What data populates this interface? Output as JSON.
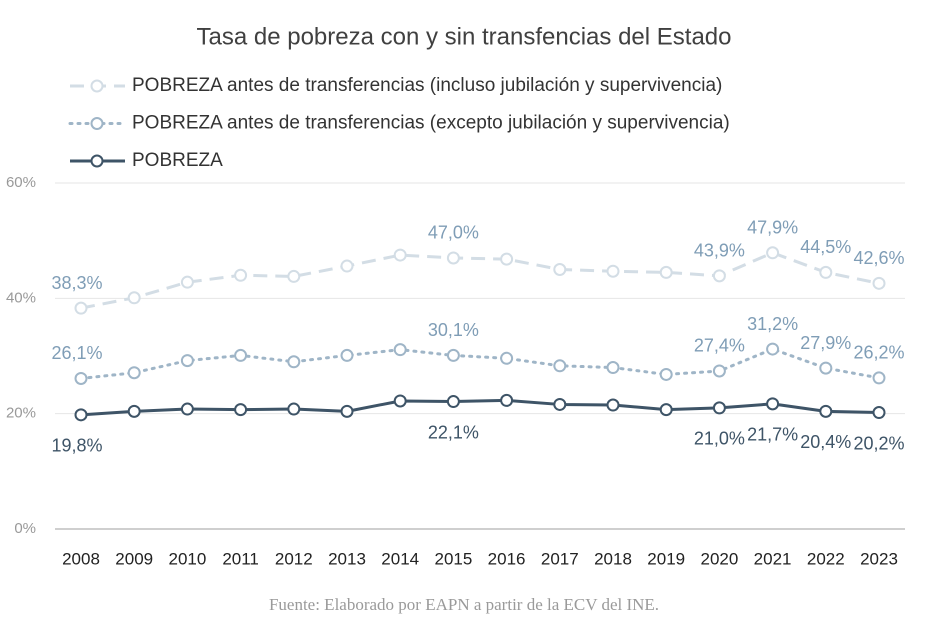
{
  "chart_data": {
    "type": "line",
    "title": "Tasa de pobreza con y sin transfencias del Estado",
    "source": "Fuente: Elaborado por EAPN a partir de la ECV del INE.",
    "categories": [
      "2008",
      "2009",
      "2010",
      "2011",
      "2012",
      "2013",
      "2014",
      "2015",
      "2016",
      "2017",
      "2018",
      "2019",
      "2020",
      "2021",
      "2022",
      "2023"
    ],
    "ylim": [
      0,
      60
    ],
    "yticks": [
      {
        "value": 0,
        "label": "0%"
      },
      {
        "value": 20,
        "label": "20%"
      },
      {
        "value": 40,
        "label": "40%"
      },
      {
        "value": 60,
        "label": "60%"
      }
    ],
    "grid": true,
    "legend": "top",
    "series": [
      {
        "name": "POBREZA antes de transferencias (incluso  jubilación y supervivencia)",
        "color": "#d3dde5",
        "label_color": "#7f9db6",
        "dash": "dashed",
        "values": [
          38.3,
          40.1,
          42.8,
          44.0,
          43.8,
          45.6,
          47.5,
          47.0,
          46.8,
          45.0,
          44.7,
          44.5,
          43.9,
          47.9,
          44.5,
          42.6
        ],
        "value_labels": [
          "38,3%",
          null,
          null,
          null,
          null,
          null,
          null,
          "47,0%",
          null,
          null,
          null,
          null,
          "43,9%",
          "47,9%",
          "44,5%",
          "42,6%"
        ]
      },
      {
        "name": "POBREZA antes de transferencias (excepto jubilación y supervivencia)",
        "color": "#9fb5c7",
        "label_color": "#7f9db6",
        "dash": "dotted",
        "values": [
          26.1,
          27.1,
          29.2,
          30.1,
          29.0,
          30.1,
          31.1,
          30.1,
          29.6,
          28.3,
          28.0,
          26.8,
          27.4,
          31.2,
          27.9,
          26.2
        ],
        "value_labels": [
          "26,1%",
          null,
          null,
          null,
          null,
          null,
          null,
          "30,1%",
          null,
          null,
          null,
          null,
          "27,4%",
          "31,2%",
          "27,9%",
          "26,2%"
        ]
      },
      {
        "name": "POBREZA",
        "color": "#3e5467",
        "label_color": "#3e5467",
        "dash": "solid",
        "values": [
          19.8,
          20.4,
          20.8,
          20.7,
          20.8,
          20.4,
          22.2,
          22.1,
          22.3,
          21.6,
          21.5,
          20.7,
          21.0,
          21.7,
          20.4,
          20.2
        ],
        "value_labels": [
          "19,8%",
          null,
          null,
          null,
          null,
          null,
          null,
          "22,1%",
          null,
          null,
          null,
          null,
          "21,0%",
          "21,7%",
          "20,4%",
          "20,2%"
        ]
      }
    ]
  }
}
